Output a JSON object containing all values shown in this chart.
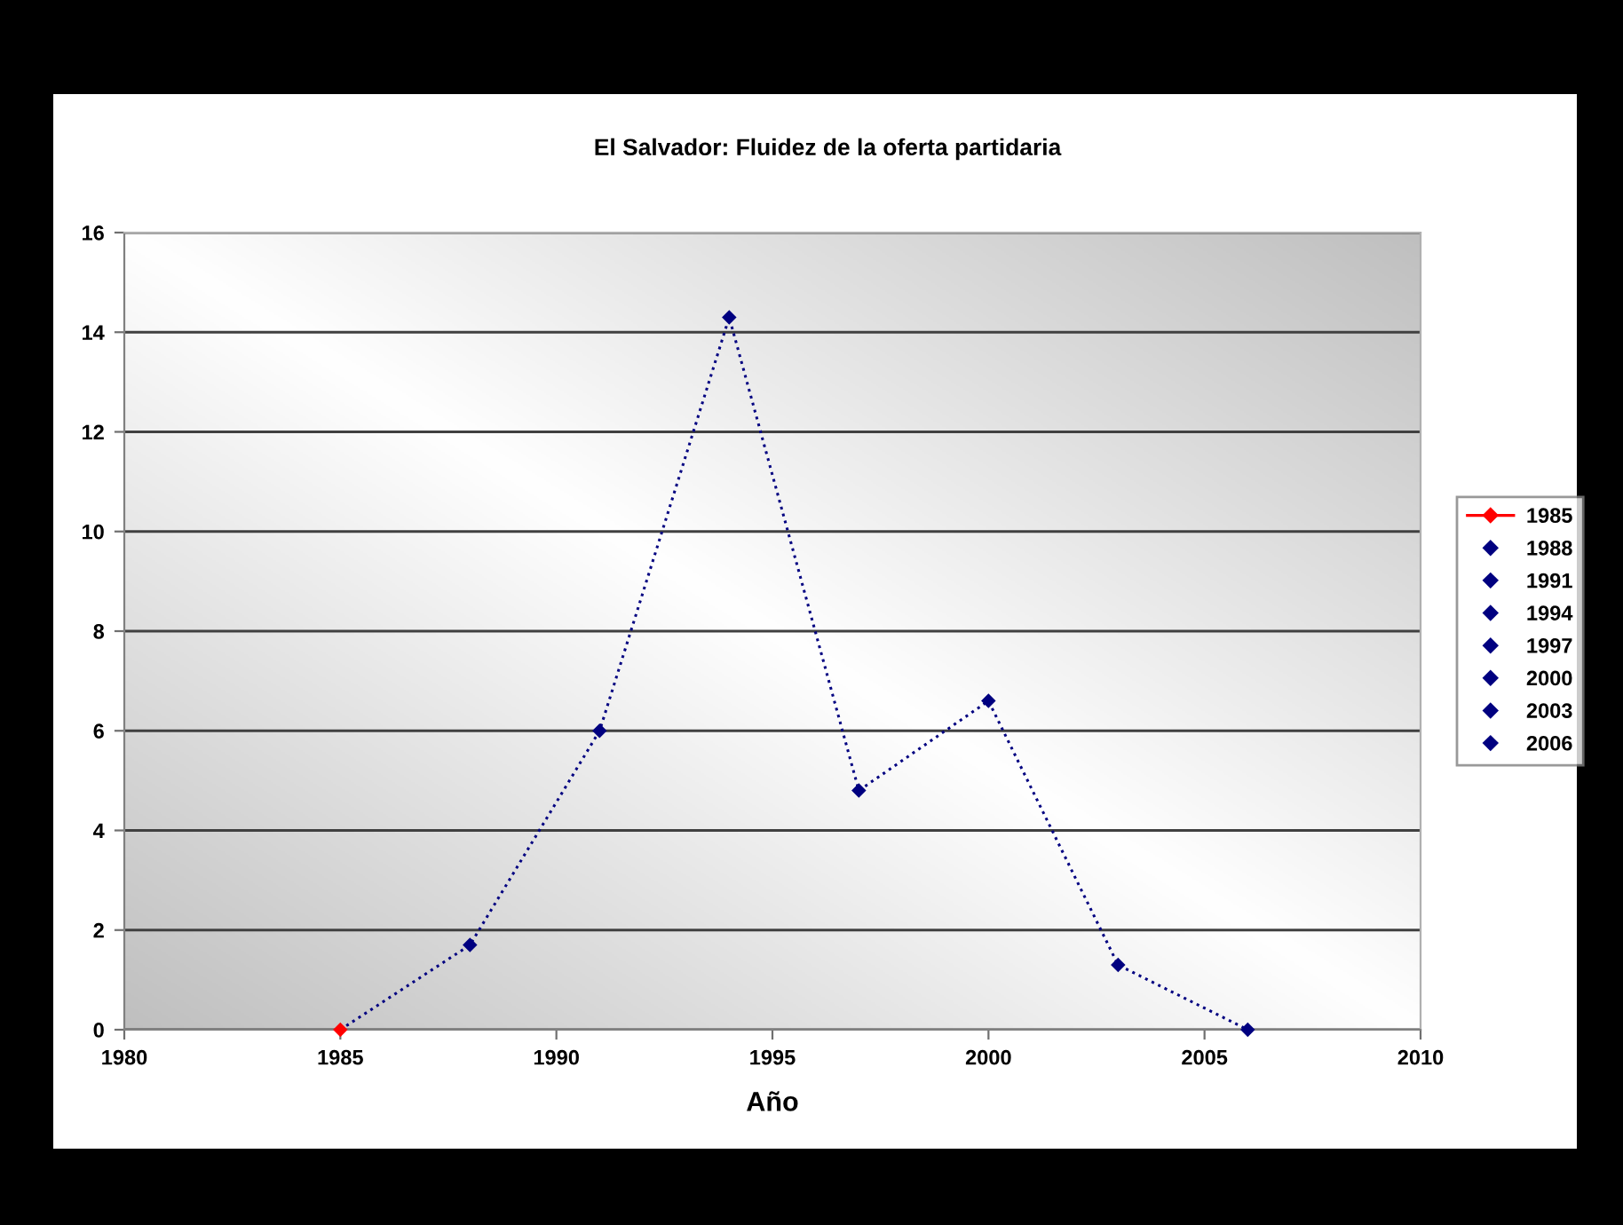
{
  "chart_data": {
    "type": "line",
    "title": "El Salvador: Fluidez de la oferta partidaria",
    "xlabel": "Año",
    "series": [
      {
        "color": "#000080",
        "line_style": "dotted",
        "marker": "none",
        "x": [
          1985,
          1988,
          1991,
          1994,
          1997,
          2000,
          2003,
          2006
        ],
        "values": [
          0,
          1.7,
          6.0,
          14.3,
          4.8,
          6.6,
          1.3,
          0
        ]
      },
      {
        "name": "1985",
        "color": "#ff0000",
        "x": [
          1985
        ],
        "values": [
          0
        ]
      },
      {
        "name": "1988",
        "type": "scatter",
        "color": "#000080",
        "x": [
          1988
        ],
        "values": [
          1.7
        ]
      },
      {
        "name": "1991",
        "type": "scatter",
        "color": "#000080",
        "x": [
          1991
        ],
        "values": [
          6.0
        ]
      },
      {
        "name": "1994",
        "type": "scatter",
        "color": "#000080",
        "x": [
          1994
        ],
        "values": [
          14.3
        ]
      },
      {
        "name": "1997",
        "type": "scatter",
        "color": "#000080",
        "x": [
          1997
        ],
        "values": [
          4.8
        ]
      },
      {
        "name": "2000",
        "type": "scatter",
        "color": "#000080",
        "x": [
          2000
        ],
        "values": [
          6.6
        ]
      },
      {
        "name": "2003",
        "type": "scatter",
        "color": "#000080",
        "x": [
          2003
        ],
        "values": [
          1.3
        ]
      },
      {
        "name": "2006",
        "type": "scatter",
        "color": "#000080",
        "x": [
          2006
        ],
        "values": [
          0
        ]
      }
    ],
    "xlim": [
      1980,
      2010
    ],
    "xticks": [
      1980,
      1985,
      1990,
      1995,
      2000,
      2005,
      2010
    ],
    "ylim": [
      0,
      16
    ],
    "yticks": [
      0,
      2,
      4,
      6,
      8,
      10,
      12,
      14,
      16
    ],
    "grid": "y",
    "legend": "right",
    "marker": "diamond"
  }
}
